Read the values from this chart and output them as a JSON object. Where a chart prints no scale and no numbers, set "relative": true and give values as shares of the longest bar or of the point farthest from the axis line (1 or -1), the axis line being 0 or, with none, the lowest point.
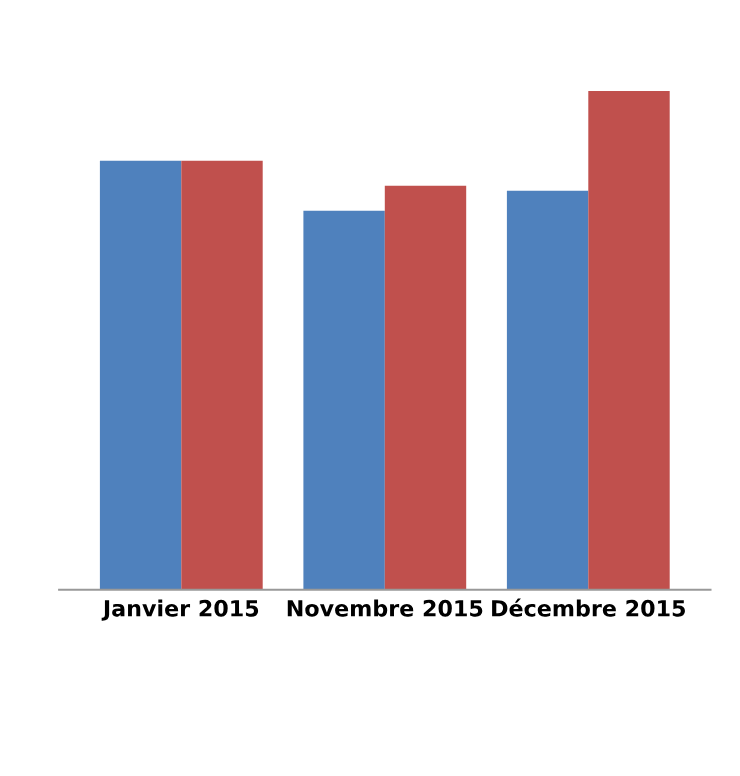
{
  "chart_data": {
    "type": "bar",
    "relative": true,
    "categories": [
      "Janvier 2015",
      "Novembre 2015",
      "Décembre 2015"
    ],
    "series": [
      {
        "color": "#4f81bd",
        "values": [
          0.86,
          0.76,
          0.8
        ]
      },
      {
        "color": "#c0504d",
        "values": [
          0.86,
          0.81,
          1
        ]
      }
    ]
  }
}
